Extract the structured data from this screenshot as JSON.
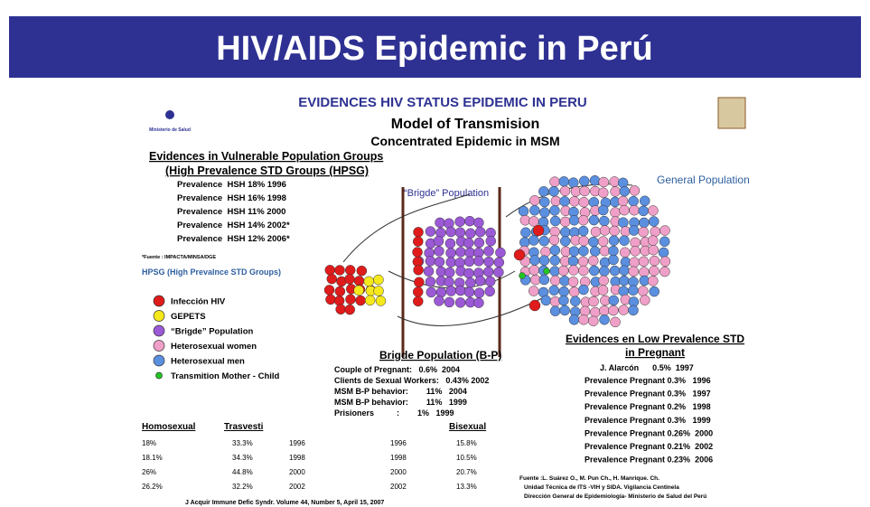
{
  "header": {
    "title": "HIV/AIDS Epidemic in Perú"
  },
  "slide": {
    "heading": "EVIDENCES HIV STATUS EPIDEMIC IN PERU",
    "subtitle": "Model of Transmision",
    "subtitle2": "Concentrated Epidemic in MSM",
    "logo": "Ministerio de Salud",
    "left": {
      "heading": [
        "Evidences in Vulnerable Population Groups",
        "(High Prevalence STD Groups (HPSG)"
      ],
      "rows": [
        "Prevalence  HSH 18% 1996",
        "Prevalence  HSH 16% 1998",
        "Prevalence  HSH 11% 2000",
        "Prevalence  HSH 14% 2002*",
        "Prevalence  HSH 12% 2006*"
      ],
      "source": "*Fuente : IMPACTA/MINSA/DGE",
      "hpsg": "HPSG (High Prevalnce STD Groups)"
    },
    "legend": [
      {
        "label": "Infección HIV",
        "color": "#e01b1b"
      },
      {
        "label": "GEPETS",
        "color": "#f5e81c"
      },
      {
        "label": "“Brigde” Population",
        "color": "#9b59d6"
      },
      {
        "label": "Heterosexual women",
        "color": "#f0a0c8"
      },
      {
        "label": "Heterosexual men",
        "color": "#5b8fe0"
      },
      {
        "label": "Transmition  Mother - Child",
        "color": "#22c522"
      }
    ],
    "diagram": {
      "bridge_label": "“Brigde” Population",
      "general_label": "General Population"
    },
    "bridge": {
      "heading": "Brigde Population  (B-P)",
      "rows": [
        "Couple of Pregnant:   0.6%  2004",
        "Clients de Sexual Workers:   0.43% 2002",
        "MSM B-P behavior:        11%   2004",
        "MSM B-P behavior:        11%   1999",
        "Prisioners          :        1%   1999"
      ]
    },
    "pregnant": {
      "heading": [
        "Evidences en Low Prevalence STD",
        "in Pregnant"
      ],
      "first": "J. Alarcón      0.5%  1997",
      "rows": [
        "Prevalence Pregnant 0.3%   1996",
        "Prevalence Pregnant 0.3%   1997",
        "Prevalence Pregnant 0.2%   1998",
        "Prevalence Pregnant 0.3%   1999",
        "Prevalence Pregnant 0.26%  2000",
        "Prevalence Pregnant 0.21%  2002",
        "Prevalence Pregnant 0.23%  2006"
      ]
    },
    "table": {
      "headers": [
        "Homosexual",
        "Trasvesti",
        "Bisexual"
      ],
      "rows": [
        [
          "18%",
          "33.3%",
          "1996",
          "1996",
          "15.8%"
        ],
        [
          "18.1%",
          "34.3%",
          "1998",
          "1998",
          "10.5%"
        ],
        [
          "26%",
          "44.8%",
          "2000",
          "2000",
          "20.7%"
        ],
        [
          "26.2%",
          "32.2%",
          "2002",
          "2002",
          "13.3%"
        ]
      ]
    },
    "fuente": [
      "Fuente :L. Suárez O.,  M. Pun Ch.,  H. Manrique. Ch.",
      "Unidad  Técnica de  ITS -VIH y SIDA. Vigilancia Centinela",
      "Dirección General de Epidemiología- Ministerio de Salud del Perú"
    ],
    "citation": "J Acquir Immune Defic Syndr. Volume 44, Number 5, April 15, 2007"
  }
}
